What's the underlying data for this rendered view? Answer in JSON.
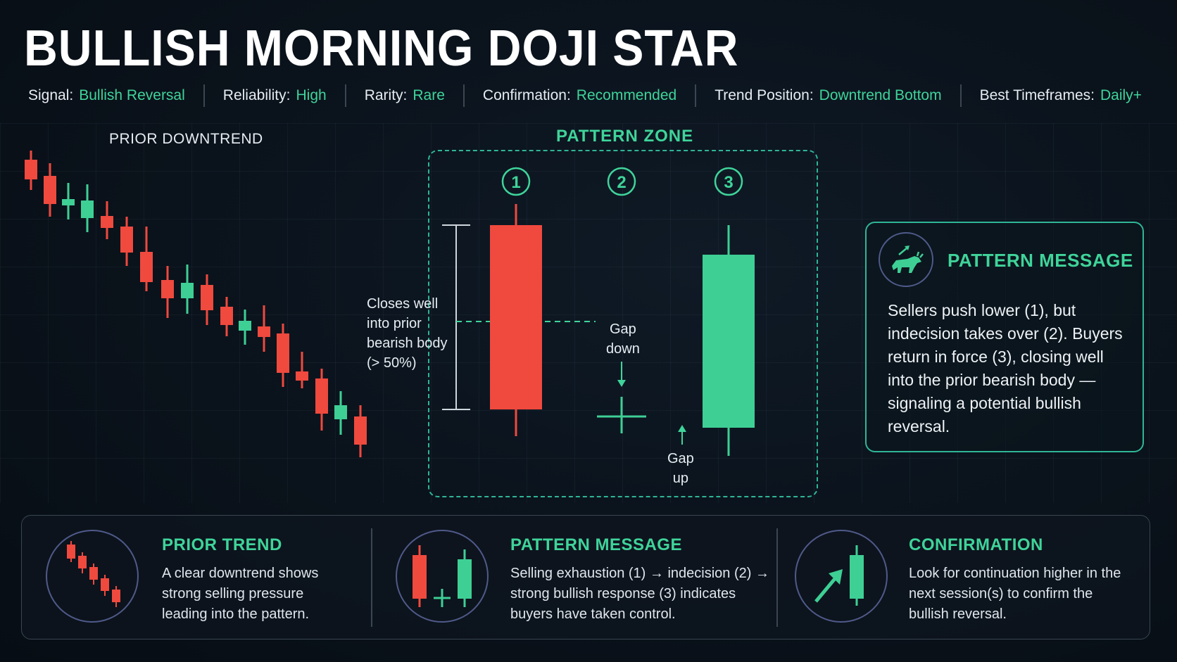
{
  "title": "BULLISH MORNING DOJI STAR",
  "meta": [
    {
      "key": "Signal:",
      "value": "Bullish Reversal"
    },
    {
      "key": "Reliability:",
      "value": "High"
    },
    {
      "key": "Rarity:",
      "value": "Rare"
    },
    {
      "key": "Confirmation:",
      "value": "Recommended"
    },
    {
      "key": "Trend Position:",
      "value": "Downtrend Bottom"
    },
    {
      "key": "Best Timeframes:",
      "value": "Daily+"
    }
  ],
  "prior_label": "PRIOR DOWNTREND",
  "zone_label": "PATTERN ZONE",
  "markers": [
    "1",
    "2",
    "3"
  ],
  "notes": {
    "closes_lines": [
      "Closes well",
      "into prior",
      "bearish body",
      "(> 50%)"
    ],
    "gap_down_lines": [
      "Gap",
      "down"
    ],
    "gap_up_lines": [
      "Gap",
      "up"
    ]
  },
  "message": {
    "title": "PATTERN MESSAGE",
    "icon": "bull-icon",
    "body": "Sellers push lower (1), but indecision takes over (2). Buyers return in force (3), closing well into the prior bearish body — signaling a potential bullish reversal."
  },
  "bottom": [
    {
      "icon": "downtrend-candles-icon",
      "title": "PRIOR TREND",
      "lines": [
        "A clear downtrend shows",
        "strong selling pressure",
        "leading into the pattern."
      ]
    },
    {
      "icon": "three-candles-icon",
      "title": "PATTERN MESSAGE",
      "lines": [
        "Selling exhaustion (1) → indecision (2) →",
        "strong bullish response (3) indicates",
        "buyers have taken control."
      ]
    },
    {
      "icon": "confirmation-arrow-icon",
      "title": "CONFIRMATION",
      "lines": [
        "Look for continuation higher in the",
        "next session(s) to confirm the",
        "bullish reversal."
      ]
    }
  ],
  "colors": {
    "bullish": "#3ecf95",
    "bearish": "#f0493e",
    "accent": "#3fd49a"
  }
}
